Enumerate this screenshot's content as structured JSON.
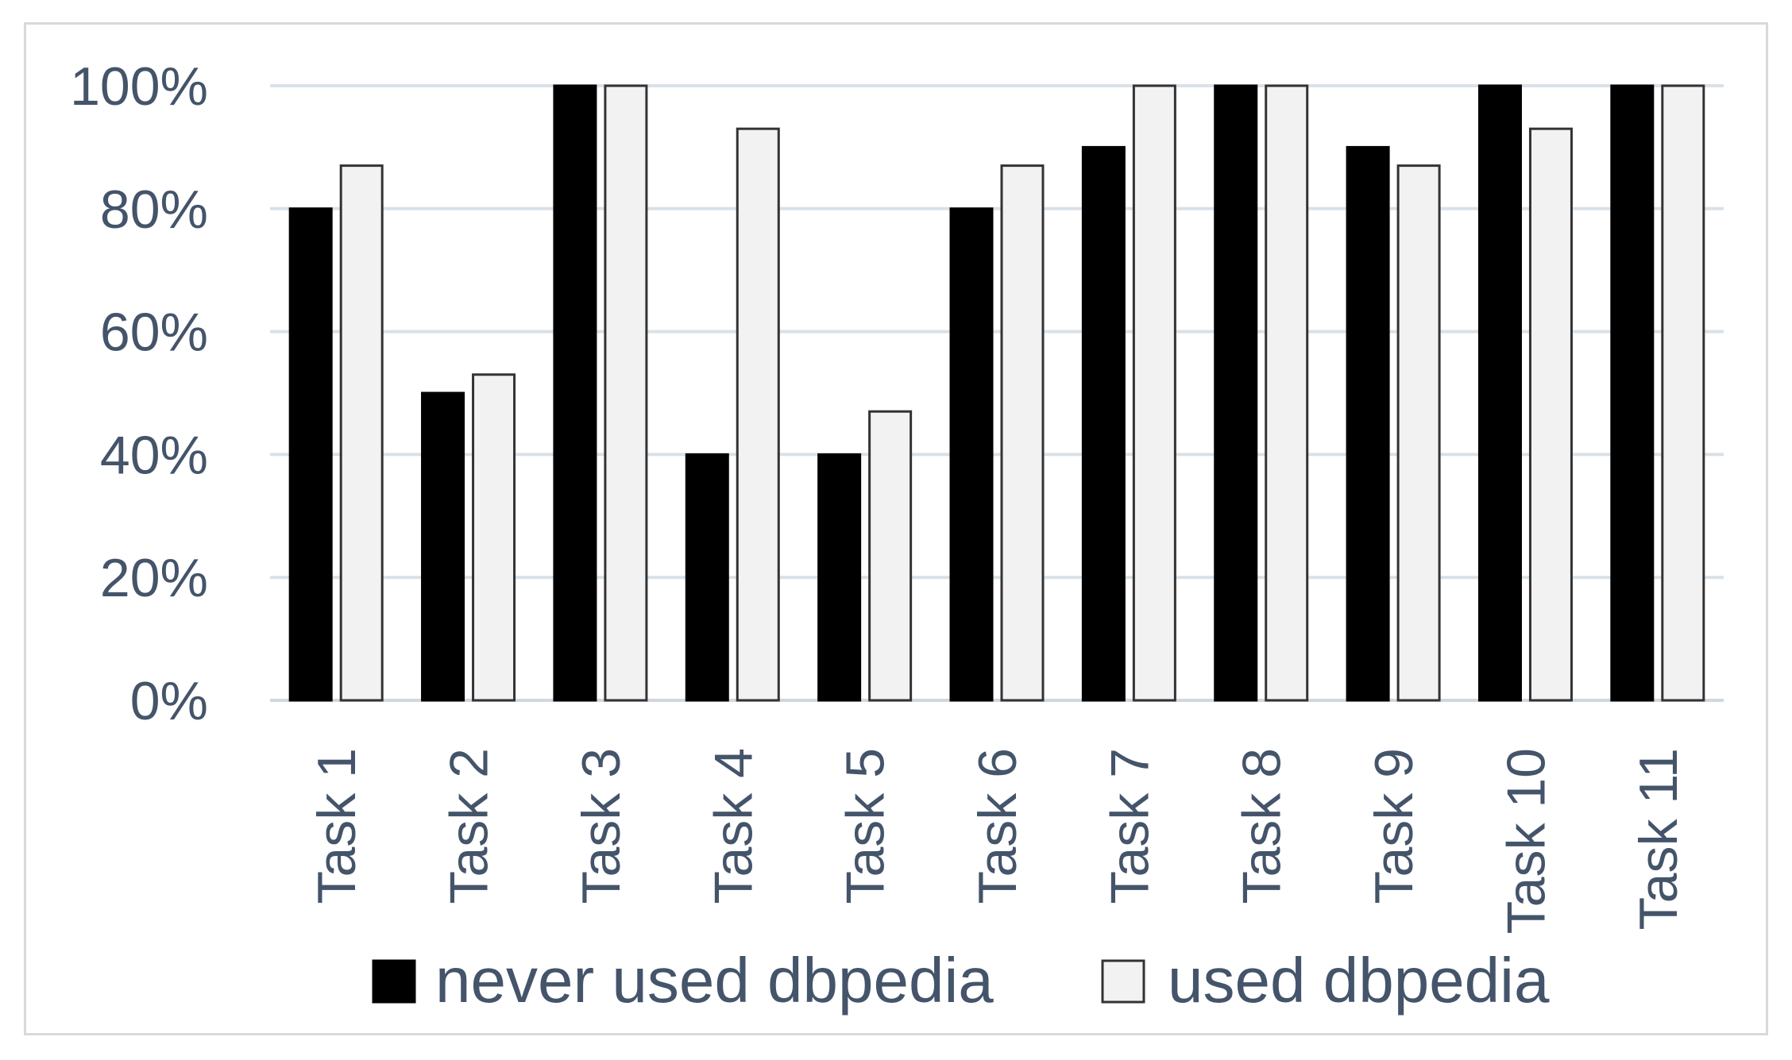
{
  "chart_data": {
    "type": "bar",
    "categories": [
      "Task 1",
      "Task 2",
      "Task 3",
      "Task 4",
      "Task 5",
      "Task 6",
      "Task 7",
      "Task 8",
      "Task 9",
      "Task 10",
      "Task 11"
    ],
    "series": [
      {
        "name": "never used dbpedia",
        "color": "#000000",
        "values": [
          80,
          50,
          100,
          40,
          40,
          80,
          90,
          100,
          90,
          100,
          100
        ]
      },
      {
        "name": "used dbpedia",
        "color": "#f2f2f2",
        "values": [
          87,
          53,
          100,
          93,
          47,
          87,
          100,
          100,
          87,
          93,
          100
        ]
      }
    ],
    "yticks": [
      "0%",
      "20%",
      "40%",
      "60%",
      "80%",
      "100%"
    ],
    "ylim": [
      0,
      100
    ],
    "grid": true,
    "legend": "bottom",
    "gridline_color": "#d9e1e8",
    "text_color": "#44546a"
  }
}
